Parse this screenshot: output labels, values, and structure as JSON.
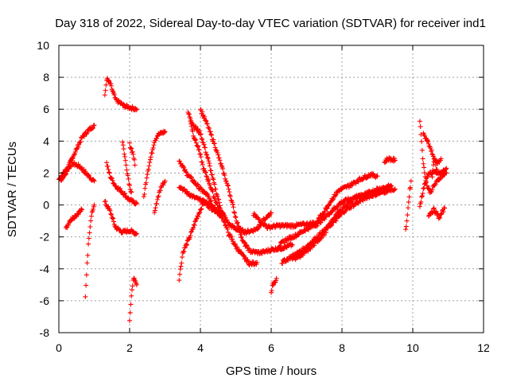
{
  "chart_data": {
    "type": "scatter",
    "title": "Day 318 of 2022, Sidereal Day-to-day VTEC variation (SDTVAR) for receiver ind1",
    "xlabel": "GPS time / hours",
    "ylabel": "SDTVAR / TECUs",
    "xlim": [
      0,
      12
    ],
    "ylim": [
      -8,
      10
    ],
    "xticks": [
      "0",
      "2",
      "4",
      "6",
      "8",
      "10",
      "12"
    ],
    "yticks": [
      "-8",
      "-6",
      "-4",
      "-2",
      "0",
      "2",
      "4",
      "6",
      "8",
      "10"
    ],
    "grid": true,
    "marker": "+",
    "color": "#ff0000",
    "tracks": [
      [
        [
          0.0,
          1.6
        ],
        [
          0.2,
          2.2
        ],
        [
          0.4,
          2.6
        ],
        [
          0.6,
          2.4
        ],
        [
          0.8,
          1.9
        ],
        [
          1.0,
          1.5
        ]
      ],
      [
        [
          0.05,
          1.5
        ],
        [
          0.2,
          2.0
        ],
        [
          0.35,
          2.8
        ],
        [
          0.5,
          3.5
        ],
        [
          0.65,
          4.2
        ],
        [
          0.8,
          4.6
        ],
        [
          1.0,
          5.0
        ]
      ],
      [
        [
          0.2,
          -1.5
        ],
        [
          0.3,
          -1.0
        ],
        [
          0.5,
          -0.6
        ],
        [
          0.65,
          -0.3
        ]
      ],
      [
        [
          0.75,
          -5.8
        ],
        [
          0.8,
          -3.6
        ],
        [
          0.85,
          -2.0
        ],
        [
          0.92,
          -0.6
        ],
        [
          1.0,
          0.0
        ]
      ],
      [
        [
          1.3,
          6.8
        ],
        [
          1.35,
          7.9
        ],
        [
          1.45,
          7.6
        ],
        [
          1.6,
          6.6
        ],
        [
          1.85,
          6.2
        ],
        [
          2.2,
          6.0
        ]
      ],
      [
        [
          1.35,
          2.6
        ],
        [
          1.45,
          1.8
        ],
        [
          1.6,
          1.2
        ],
        [
          1.8,
          0.8
        ],
        [
          2.0,
          0.3
        ],
        [
          2.2,
          0.1
        ]
      ],
      [
        [
          1.3,
          0.2
        ],
        [
          1.45,
          -0.4
        ],
        [
          1.6,
          -1.4
        ],
        [
          1.8,
          -1.7
        ],
        [
          2.0,
          -1.6
        ],
        [
          2.2,
          -1.8
        ]
      ],
      [
        [
          1.8,
          4.0
        ],
        [
          1.9,
          2.5
        ],
        [
          2.0,
          1.2
        ],
        [
          2.05,
          0.8
        ]
      ],
      [
        [
          2.0,
          -7.2
        ],
        [
          2.05,
          -5.8
        ],
        [
          2.1,
          -4.6
        ],
        [
          2.2,
          -5.0
        ]
      ],
      [
        [
          2.0,
          3.8
        ],
        [
          2.1,
          3.2
        ],
        [
          2.15,
          2.5
        ]
      ],
      [
        [
          2.4,
          0.5
        ],
        [
          2.5,
          2.0
        ],
        [
          2.6,
          3.0
        ],
        [
          2.7,
          4.0
        ],
        [
          2.8,
          4.4
        ],
        [
          3.0,
          4.6
        ]
      ],
      [
        [
          2.7,
          -0.5
        ],
        [
          2.8,
          0.5
        ],
        [
          2.9,
          1.2
        ],
        [
          3.0,
          1.5
        ]
      ],
      [
        [
          3.4,
          -4.6
        ],
        [
          3.5,
          -3.0
        ],
        [
          3.7,
          -2.0
        ],
        [
          3.9,
          -0.8
        ],
        [
          4.1,
          0.2
        ],
        [
          4.3,
          -0.2
        ],
        [
          4.5,
          -0.4
        ]
      ],
      [
        [
          3.4,
          2.8
        ],
        [
          3.6,
          2.0
        ],
        [
          3.8,
          1.5
        ],
        [
          4.0,
          1.0
        ],
        [
          4.2,
          0.6
        ],
        [
          4.4,
          -0.3
        ],
        [
          4.6,
          -0.5
        ]
      ],
      [
        [
          3.4,
          1.2
        ],
        [
          3.6,
          0.8
        ],
        [
          3.8,
          0.5
        ],
        [
          4.0,
          0.3
        ],
        [
          4.2,
          0.1
        ],
        [
          4.4,
          -0.2
        ],
        [
          4.6,
          -0.8
        ]
      ],
      [
        [
          3.65,
          5.8
        ],
        [
          3.8,
          5.0
        ],
        [
          4.0,
          4.5
        ],
        [
          4.2,
          3.0
        ],
        [
          4.4,
          1.2
        ],
        [
          4.6,
          -0.4
        ],
        [
          4.8,
          -1.2
        ],
        [
          5.0,
          -1.5
        ],
        [
          5.3,
          -1.7
        ],
        [
          5.6,
          -1.5
        ]
      ],
      [
        [
          3.7,
          5.5
        ],
        [
          3.8,
          4.4
        ],
        [
          3.95,
          3.5
        ],
        [
          4.1,
          2.2
        ],
        [
          4.25,
          1.4
        ],
        [
          4.4,
          0.4
        ],
        [
          4.6,
          -0.6
        ],
        [
          4.8,
          -1.8
        ],
        [
          5.0,
          -2.6
        ],
        [
          5.2,
          -3.2
        ],
        [
          5.4,
          -3.7
        ],
        [
          5.6,
          -3.6
        ]
      ],
      [
        [
          4.0,
          6.0
        ],
        [
          4.2,
          5.0
        ],
        [
          4.4,
          3.8
        ],
        [
          4.6,
          2.4
        ],
        [
          4.8,
          1.0
        ],
        [
          5.0,
          -0.8
        ],
        [
          5.2,
          -2.3
        ],
        [
          5.4,
          -2.9
        ],
        [
          5.7,
          -3.0
        ],
        [
          6.0,
          -2.8
        ],
        [
          6.3,
          -2.7
        ],
        [
          6.6,
          -2.5
        ]
      ],
      [
        [
          5.5,
          -0.6
        ],
        [
          5.7,
          -1.0
        ],
        [
          5.9,
          -1.4
        ],
        [
          6.2,
          -1.3
        ],
        [
          6.6,
          -1.3
        ],
        [
          7.0,
          -1.2
        ],
        [
          7.3,
          -1.1
        ]
      ],
      [
        [
          5.6,
          -1.5
        ],
        [
          5.8,
          -0.9
        ],
        [
          6.0,
          -0.5
        ]
      ],
      [
        [
          6.0,
          -5.4
        ],
        [
          6.05,
          -5.0
        ],
        [
          6.15,
          -4.6
        ]
      ],
      [
        [
          6.2,
          -2.6
        ],
        [
          6.4,
          -2.2
        ],
        [
          6.7,
          -1.9
        ],
        [
          7.0,
          -1.5
        ],
        [
          7.3,
          -1.2
        ],
        [
          7.6,
          -0.6
        ],
        [
          8.0,
          0.2
        ],
        [
          8.4,
          0.5
        ],
        [
          8.8,
          0.7
        ],
        [
          9.2,
          0.9
        ],
        [
          9.5,
          1.0
        ]
      ],
      [
        [
          6.3,
          -3.6
        ],
        [
          6.6,
          -3.2
        ],
        [
          6.9,
          -2.8
        ],
        [
          7.2,
          -2.2
        ],
        [
          7.5,
          -1.6
        ],
        [
          7.8,
          -1.0
        ],
        [
          8.1,
          -0.3
        ],
        [
          8.4,
          0.1
        ],
        [
          8.7,
          0.5
        ],
        [
          9.0,
          0.7
        ],
        [
          9.3,
          0.9
        ]
      ],
      [
        [
          6.6,
          -3.4
        ],
        [
          6.9,
          -3.1
        ],
        [
          7.2,
          -2.5
        ],
        [
          7.5,
          -1.8
        ],
        [
          7.8,
          -0.7
        ],
        [
          8.1,
          0.0
        ],
        [
          8.4,
          0.5
        ],
        [
          8.7,
          0.7
        ],
        [
          9.0,
          1.0
        ],
        [
          9.4,
          1.2
        ]
      ],
      [
        [
          7.3,
          -1.0
        ],
        [
          7.5,
          -0.4
        ],
        [
          7.7,
          0.3
        ],
        [
          7.9,
          0.9
        ],
        [
          8.2,
          1.2
        ],
        [
          8.5,
          1.6
        ],
        [
          8.8,
          1.9
        ],
        [
          9.0,
          1.8
        ]
      ],
      [
        [
          9.2,
          2.7
        ],
        [
          9.3,
          2.9
        ],
        [
          9.5,
          2.8
        ]
      ],
      [
        [
          9.8,
          -1.6
        ],
        [
          9.85,
          -0.6
        ],
        [
          9.9,
          0.6
        ],
        [
          9.95,
          1.5
        ]
      ],
      [
        [
          10.2,
          5.3
        ],
        [
          10.25,
          4.0
        ],
        [
          10.3,
          2.5
        ],
        [
          10.4,
          1.2
        ],
        [
          10.5,
          0.8
        ],
        [
          10.6,
          1.2
        ],
        [
          10.8,
          1.8
        ],
        [
          10.95,
          2.0
        ]
      ],
      [
        [
          10.2,
          -0.1
        ],
        [
          10.3,
          1.0
        ],
        [
          10.45,
          2.0
        ],
        [
          10.6,
          2.0
        ],
        [
          10.8,
          2.0
        ],
        [
          10.95,
          2.3
        ]
      ],
      [
        [
          10.3,
          4.4
        ],
        [
          10.4,
          4.1
        ],
        [
          10.5,
          3.6
        ],
        [
          10.6,
          2.8
        ],
        [
          10.7,
          2.6
        ],
        [
          10.8,
          2.9
        ]
      ],
      [
        [
          10.45,
          -0.6
        ],
        [
          10.6,
          -0.3
        ],
        [
          10.75,
          -0.8
        ],
        [
          10.9,
          -0.2
        ]
      ],
      [
        [
          10.55,
          1.8
        ],
        [
          10.6,
          3.0
        ],
        [
          10.7,
          2.0
        ]
      ]
    ]
  }
}
